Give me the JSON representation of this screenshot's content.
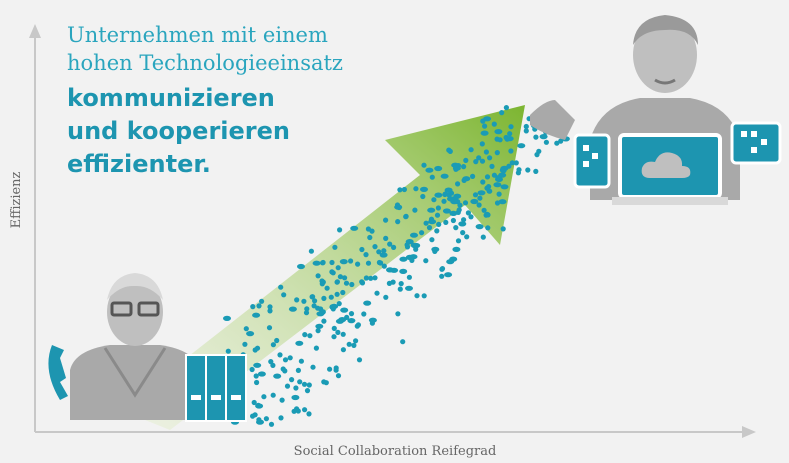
{
  "headline": {
    "lines": [
      "Unternehmen mit einem",
      "hohen Technologieeinsatz"
    ],
    "bold_lines": [
      "kommunizieren",
      "und kooperieren",
      "effizienter."
    ]
  },
  "axes": {
    "y_label": "Effizienz",
    "x_label": "Social Collaboration Reifegrad"
  }
}
